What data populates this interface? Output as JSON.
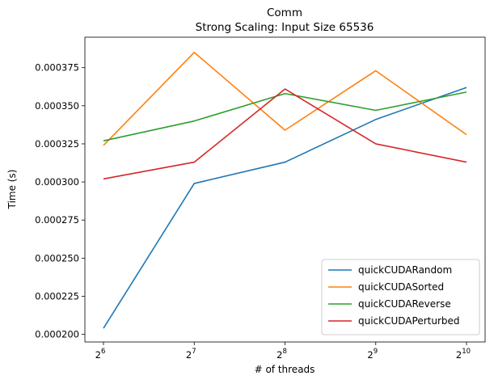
{
  "chart_data": {
    "type": "line",
    "title": "Comm",
    "subtitle": "Strong Scaling: Input Size 65536",
    "xlabel": "# of threads",
    "ylabel": "Time (s)",
    "x_scale": "log2",
    "x": [
      64,
      128,
      256,
      512,
      1024
    ],
    "x_tick_base": "2",
    "x_tick_exponents": [
      "6",
      "7",
      "8",
      "9",
      "10"
    ],
    "ylim": [
      0.000195,
      0.000395
    ],
    "y_ticks": [
      "0.000200",
      "0.000225",
      "0.000250",
      "0.000275",
      "0.000300",
      "0.000325",
      "0.000350",
      "0.000375"
    ],
    "grid": false,
    "legend_position": "lower right",
    "series": [
      {
        "name": "quickCUDARandom",
        "color": "#1f77b4",
        "values": [
          0.000204,
          0.000299,
          0.000313,
          0.000341,
          0.000362
        ]
      },
      {
        "name": "quickCUDASorted",
        "color": "#ff7f0e",
        "values": [
          0.000324,
          0.000385,
          0.000334,
          0.000373,
          0.000331
        ]
      },
      {
        "name": "quickCUDAReverse",
        "color": "#2ca02c",
        "values": [
          0.000327,
          0.00034,
          0.000358,
          0.000347,
          0.000359
        ]
      },
      {
        "name": "quickCUDAPerturbed",
        "color": "#d62728",
        "values": [
          0.000302,
          0.000313,
          0.000361,
          0.000325,
          0.000313
        ]
      }
    ]
  }
}
